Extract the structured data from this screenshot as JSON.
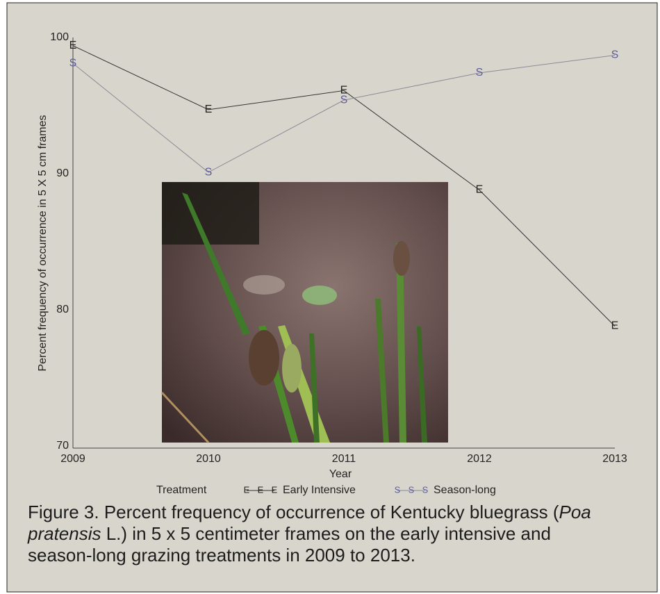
{
  "chart_data": {
    "type": "line",
    "y_label": "Percent frequency of occurrence in 5 X 5 cm frames",
    "x_label": "Year",
    "x": [
      2009,
      2010,
      2011,
      2012,
      2013
    ],
    "xlim": [
      2009,
      2013
    ],
    "xticks": [
      2009,
      2010,
      2011,
      2012,
      2013
    ],
    "ylim": [
      70,
      100
    ],
    "yticks": [
      70,
      80,
      90,
      100
    ],
    "legend_title": "Treatment",
    "series": [
      {
        "name": "Early Intensive",
        "marker": "E",
        "color": "#333333",
        "marker_color": "#222222",
        "values": [
          99.4,
          94.7,
          96.1,
          88.8,
          78.8
        ]
      },
      {
        "name": "Season-long",
        "marker": "S",
        "color": "#8a8a96",
        "marker_color": "#5d5b9c",
        "values": [
          98.1,
          90.1,
          95.4,
          97.4,
          98.7
        ]
      }
    ]
  },
  "caption": [
    "Figure 3. Percent frequency of occurrence of Kentucky bluegrass (",
    "Poa pratensis",
    " L.) in 5 x 5 centimeter frames on the early intensive and season-long grazing treatments in 2009 to 2013."
  ]
}
